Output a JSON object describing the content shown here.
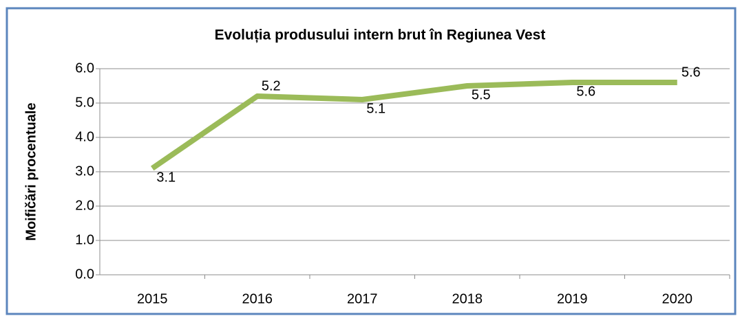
{
  "chart_data": {
    "type": "line",
    "title": "Evoluția produsului intern brut în Regiunea Vest",
    "y_label": "Moifičări procentuale",
    "categories": [
      "2015",
      "2016",
      "2017",
      "2018",
      "2019",
      "2020"
    ],
    "values": [
      3.1,
      5.2,
      5.1,
      5.5,
      5.6,
      5.6
    ],
    "color": "#9bbb59",
    "ylim": [
      0,
      6
    ],
    "yticks": [
      {
        "value": 0,
        "label": "0.0"
      },
      {
        "value": 1,
        "label": "1.0"
      },
      {
        "value": 2,
        "label": "2.0"
      },
      {
        "value": 3,
        "label": "3.0"
      },
      {
        "value": 4,
        "label": "4.0"
      },
      {
        "value": 5,
        "label": "5.0"
      },
      {
        "value": 6,
        "label": "6.0"
      }
    ],
    "grid": true
  }
}
